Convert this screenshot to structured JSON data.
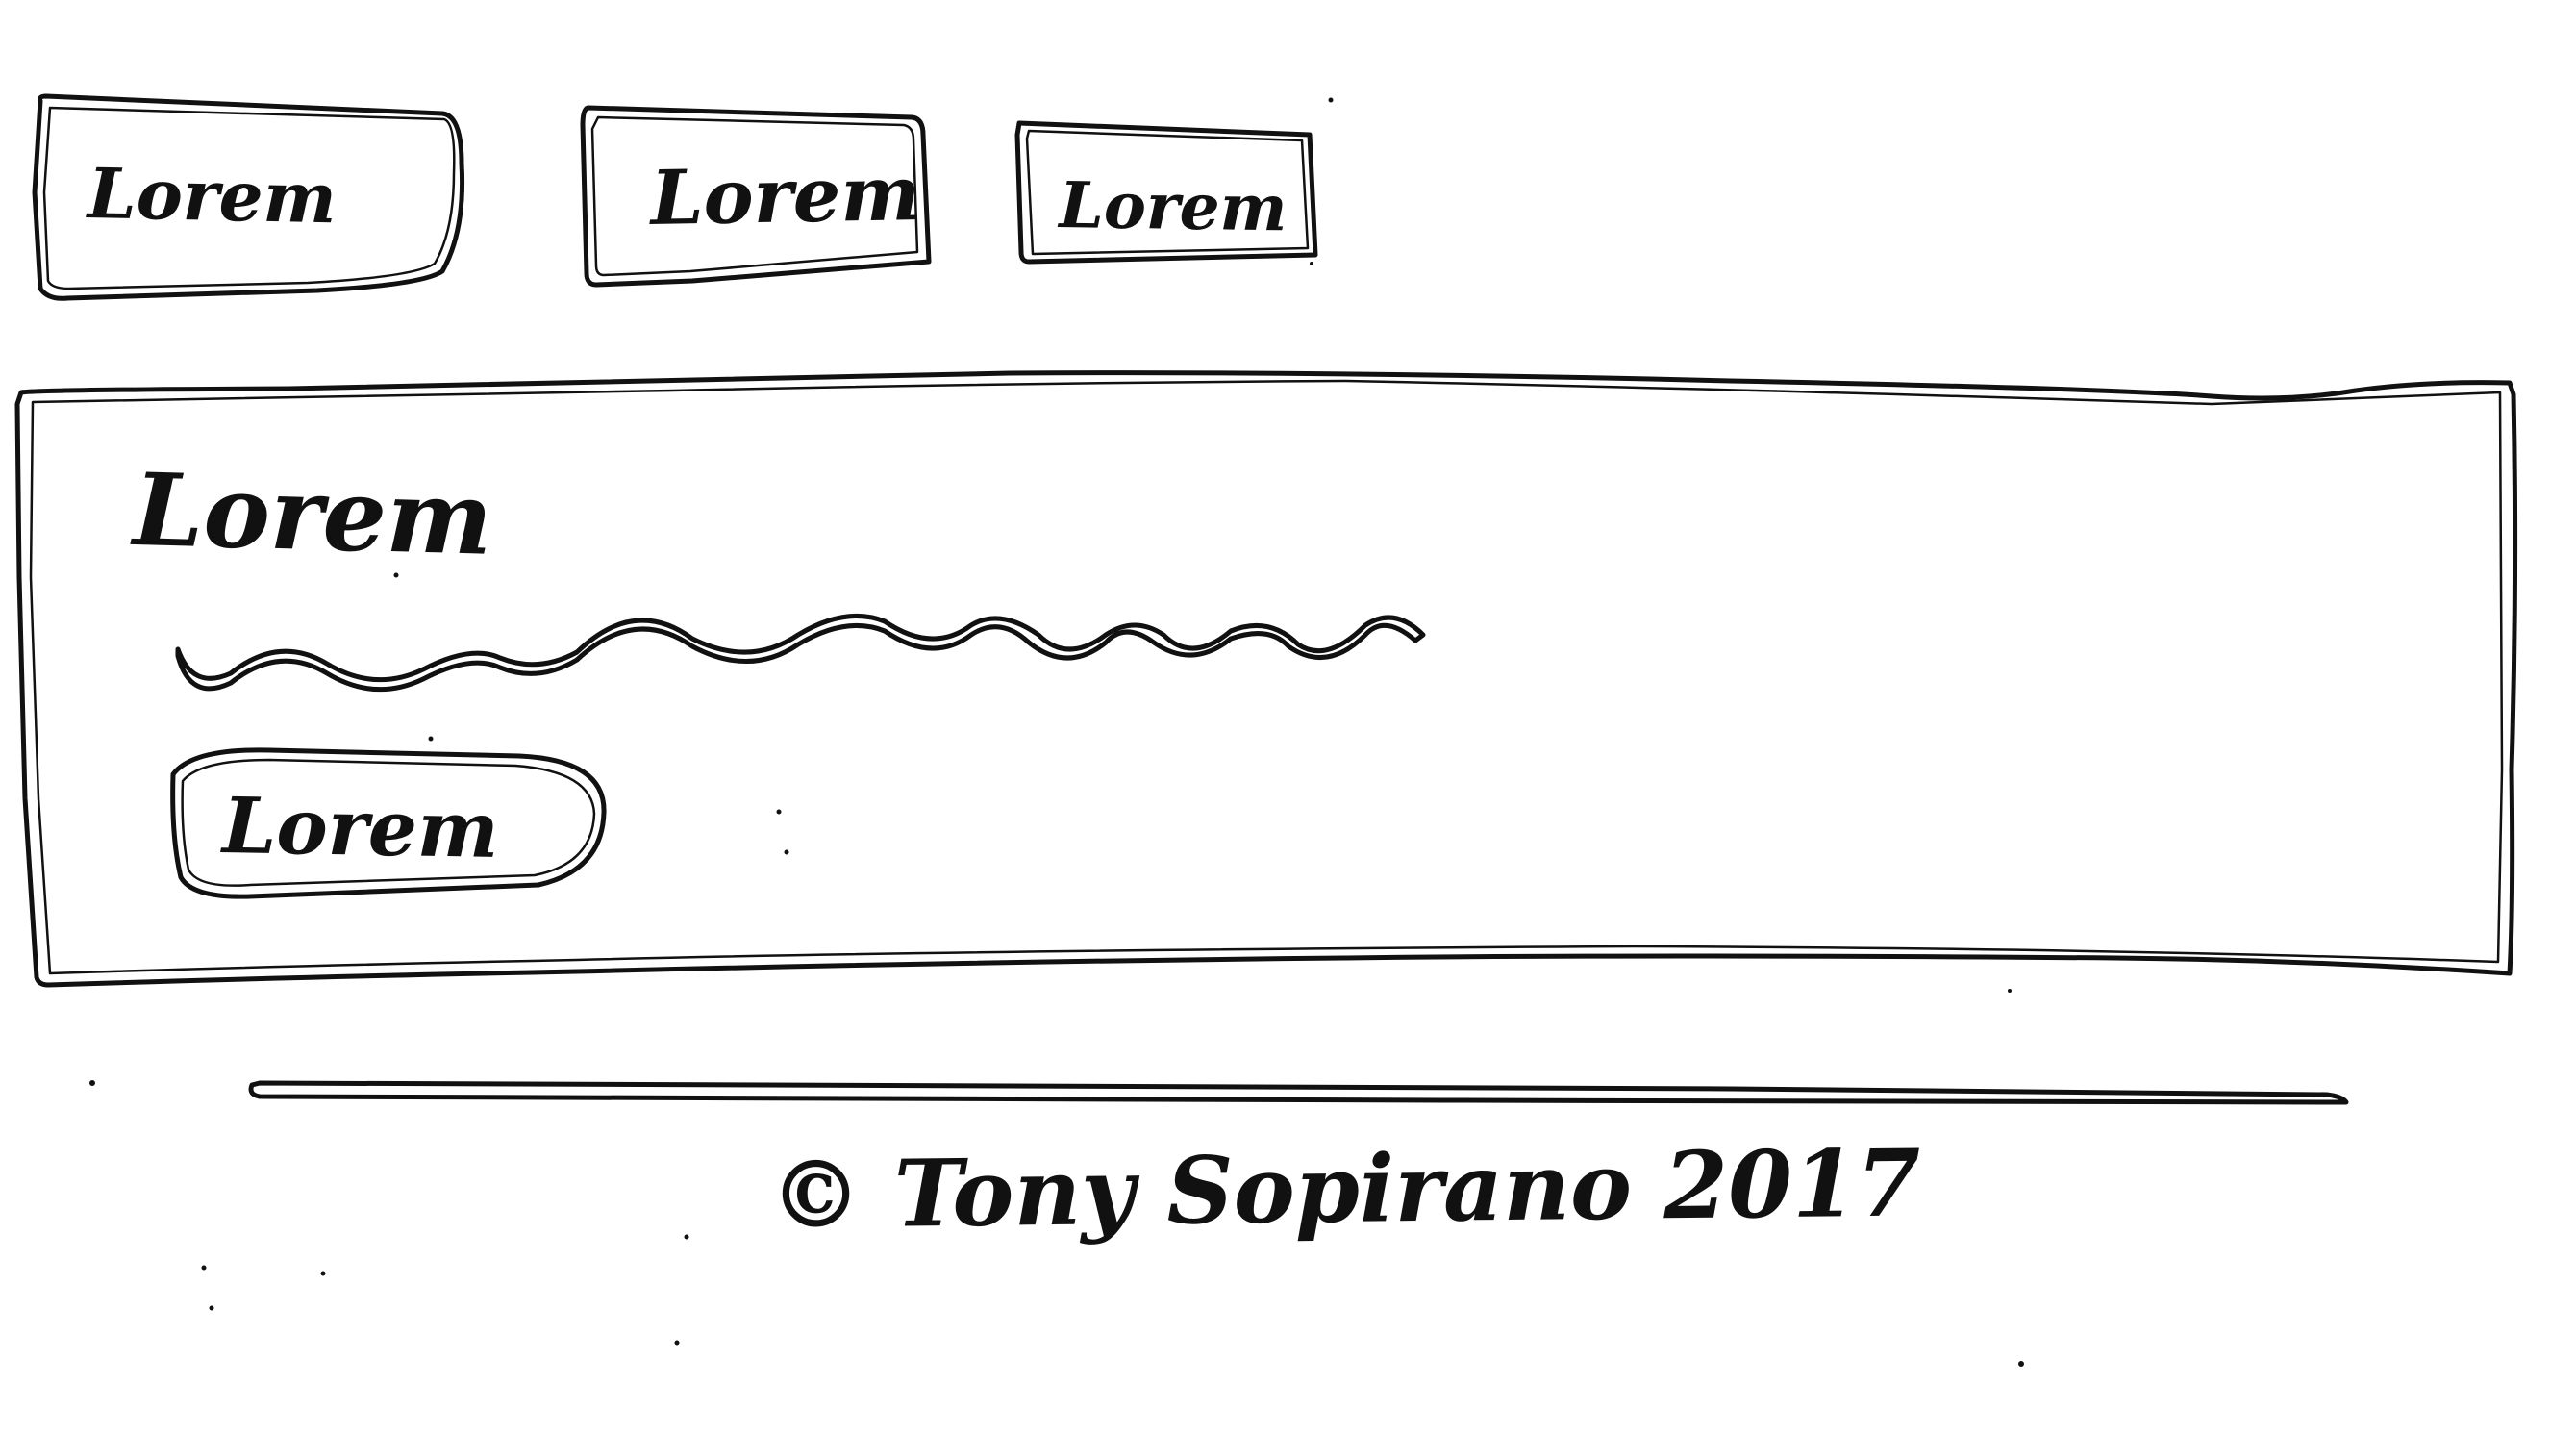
{
  "nav": {
    "buttons": [
      {
        "label": "Lorem"
      },
      {
        "label": "Lorem"
      },
      {
        "label": "Lorem"
      }
    ]
  },
  "card": {
    "heading": "Lorem",
    "button_label": "Lorem"
  },
  "footer": {
    "text": "© Tony Sopirano 2017"
  }
}
